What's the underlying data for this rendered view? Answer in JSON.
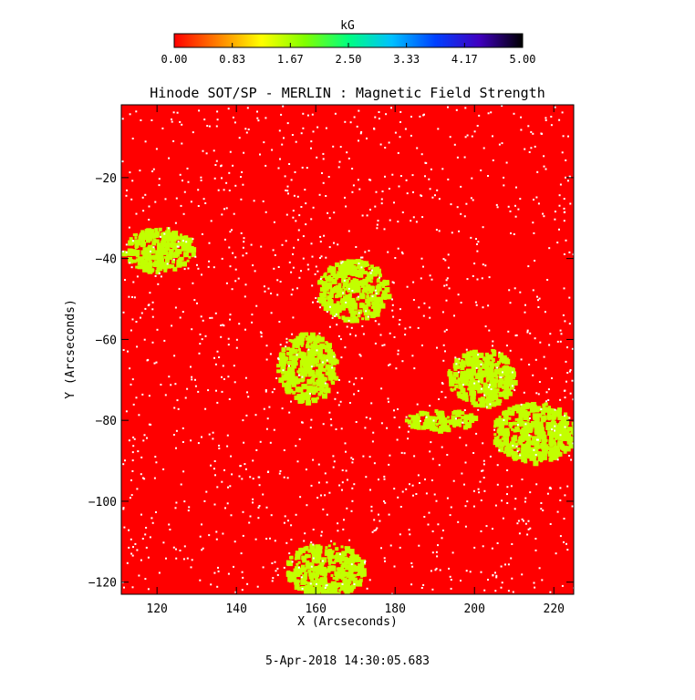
{
  "colorbar": {
    "unit_label": "kG",
    "ticks": [
      "0.00",
      "0.83",
      "1.67",
      "2.50",
      "3.33",
      "4.17",
      "5.00"
    ],
    "colors": [
      "#ff0000",
      "#ff8000",
      "#ffff00",
      "#80ff00",
      "#00ff80",
      "#00c0ff",
      "#0040ff",
      "#4000c0",
      "#000000"
    ]
  },
  "footer": {
    "timestamp": "5-Apr-2018 14:30:05.683"
  },
  "chart_data": {
    "type": "heatmap",
    "title": "Hinode SOT/SP - MERLIN : Magnetic Field Strength",
    "xlabel": "X (Arcseconds)",
    "ylabel": "Y (Arcseconds)",
    "xlim": [
      111,
      225
    ],
    "ylim": [
      -123,
      -2
    ],
    "xticks": [
      120,
      140,
      160,
      180,
      200,
      220
    ],
    "yticks": [
      -20,
      -40,
      -60,
      -80,
      -100,
      -120
    ],
    "value_range_kG": [
      0,
      5
    ],
    "background_value_kG": 0.1,
    "patch_value_kG": 1.55,
    "strong_field_regions": [
      {
        "x": [
          111,
          129
        ],
        "y": [
          -43,
          -32
        ]
      },
      {
        "x": [
          150,
          165
        ],
        "y": [
          -75,
          -58
        ]
      },
      {
        "x": [
          160,
          178
        ],
        "y": [
          -55,
          -40
        ]
      },
      {
        "x": [
          193,
          210
        ],
        "y": [
          -76,
          -62
        ]
      },
      {
        "x": [
          204,
          225
        ],
        "y": [
          -90,
          -75
        ]
      },
      {
        "x": [
          152,
          172
        ],
        "y": [
          -123,
          -110
        ]
      },
      {
        "x": [
          182,
          200
        ],
        "y": [
          -82,
          -77
        ]
      }
    ]
  }
}
